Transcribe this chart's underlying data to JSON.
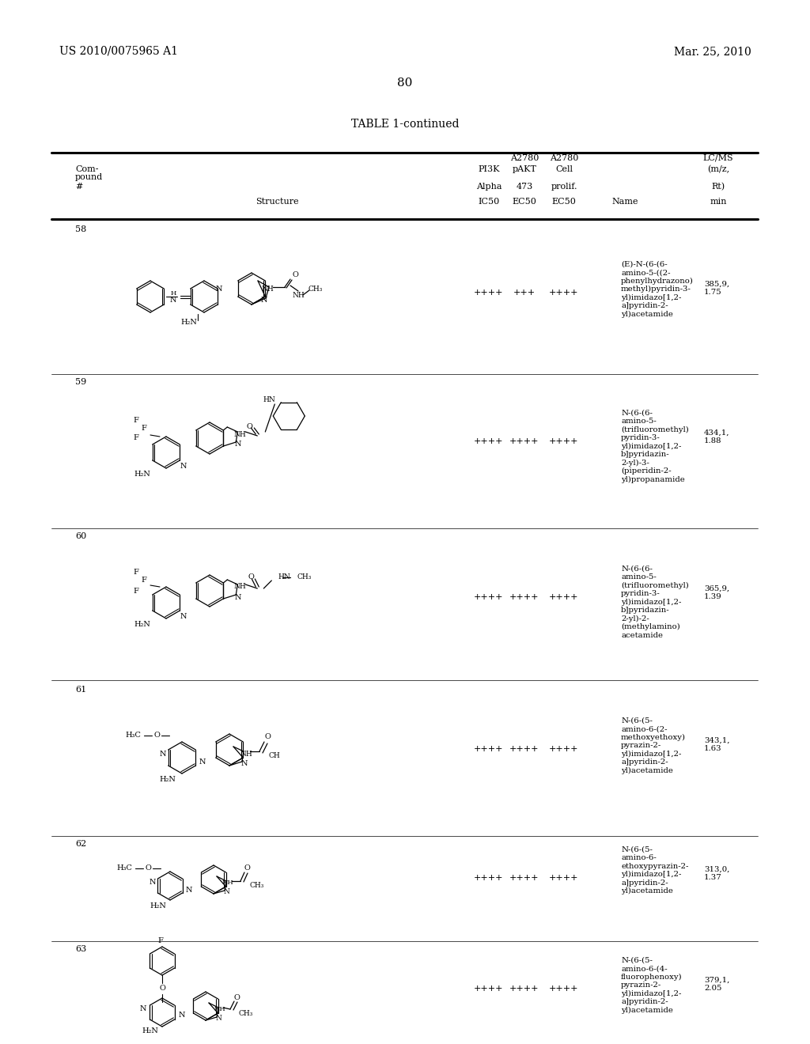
{
  "page_number": "80",
  "patent_number": "US 2010/0075965 A1",
  "patent_date": "Mar. 25, 2010",
  "table_title": "TABLE 1-continued",
  "header": {
    "col1": "Com-\npound\n#",
    "col2": "Structure",
    "col3": "PI3K\nAlpha\nIC50",
    "col4": "A2780\npAKT\n473\nEC50",
    "col5": "A2780\nCell\nprolif.\nEC50",
    "col6": "Name",
    "col7": "LC/MS\n(m/z,\nRt)\nmin"
  },
  "rows": [
    {
      "compound": "58",
      "pi3k": "++++",
      "pakt": "+++",
      "cell": "++++",
      "name": "(E)-N-(6-(6-\namino-5-((2-\nphenylhydrazono)\nmethyl)pyridin-3-\nyl)imidazo[1,2-\na]pyridin-2-\nyl)acetamide",
      "lcms": "385,9,\n1.75"
    },
    {
      "compound": "59",
      "pi3k": "++++",
      "pakt": "++++",
      "cell": "++++",
      "name": "N-(6-(6-\namino-5-\n(trifluoromethyl)\npyridin-3-\nyl)imidazo[1,2-\nb]pyridazin-\n2-yl)-3-\n(piperidin-2-\nyl)propanamide",
      "lcms": "434,1,\n1.88"
    },
    {
      "compound": "60",
      "pi3k": "++++",
      "pakt": "++++",
      "cell": "++++",
      "name": "N-(6-(6-\namino-5-\n(trifluoromethyl)\npyridin-3-\nyl)imidazo[1,2-\nb]pyridazin-\n2-yl)-2-\n(methylamino)\nacetamide",
      "lcms": "365,9,\n1.39"
    },
    {
      "compound": "61",
      "pi3k": "++++",
      "pakt": "++++",
      "cell": "++++",
      "name": "N-(6-(5-\namino-6-(2-\nmethoxyethoxy)\npyrazin-2-\nyl)imidazo[1,2-\na]pyridin-2-\nyl)acetamide",
      "lcms": "343,1,\n1.63"
    },
    {
      "compound": "62",
      "pi3k": "++++",
      "pakt": "++++",
      "cell": "++++",
      "name": "N-(6-(5-\namino-6-\nethoxypyrazin-2-\nyl)imidazo[1,2-\na]pyridin-2-\nyl)acetamide",
      "lcms": "313,0,\n1.37"
    },
    {
      "compound": "63",
      "pi3k": "++++",
      "pakt": "++++",
      "cell": "++++",
      "name": "N-(6-(5-\namino-6-(4-\nfluorophenoxy)\npyrazin-2-\nyl)imidazo[1,2-\na]pyridin-2-\nyl)acetamide",
      "lcms": "379,1,\n2.05"
    }
  ],
  "bg_color": "#ffffff",
  "text_color": "#000000",
  "font_size": 8.5,
  "title_font_size": 10
}
